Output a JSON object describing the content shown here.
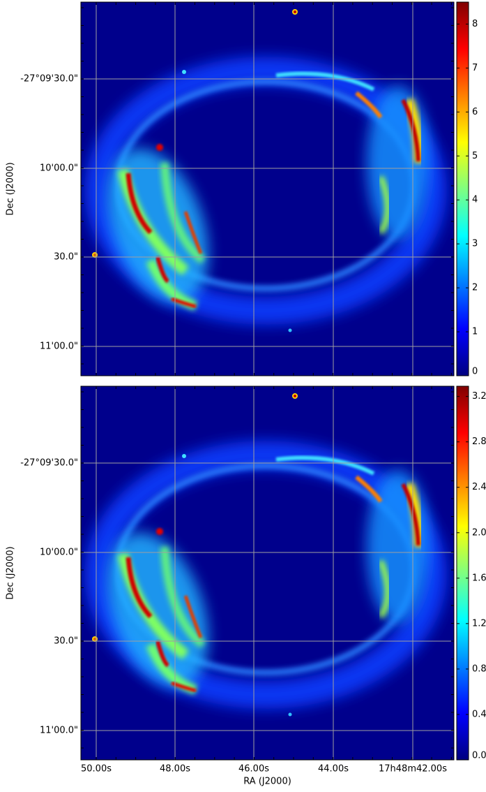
{
  "panels": [
    {
      "colorbar": {
        "lim": [
          0,
          8.5
        ],
        "ticks": [
          0,
          1,
          2,
          3,
          4,
          5,
          6,
          7,
          8
        ]
      }
    },
    {
      "colorbar": {
        "lim": [
          0,
          3.29
        ],
        "ticks": [
          {
            "value": 0,
            "label": "0.0"
          },
          0.4,
          0.8,
          1.2,
          1.6,
          {
            "value": 2,
            "label": "2.0"
          },
          2.4,
          2.8,
          3.2
        ]
      }
    }
  ],
  "axes": {
    "x_label": "RA (J2000)",
    "y_label": "Dec (J2000)",
    "xticks": [
      "50.00s",
      "48.00s",
      "46.00s",
      "44.00s",
      "17h48m42.00s"
    ],
    "yticks": [
      "-27°09'30.0\"",
      "10'00.0\"",
      "30.0\"",
      "11'00.0\""
    ]
  }
}
